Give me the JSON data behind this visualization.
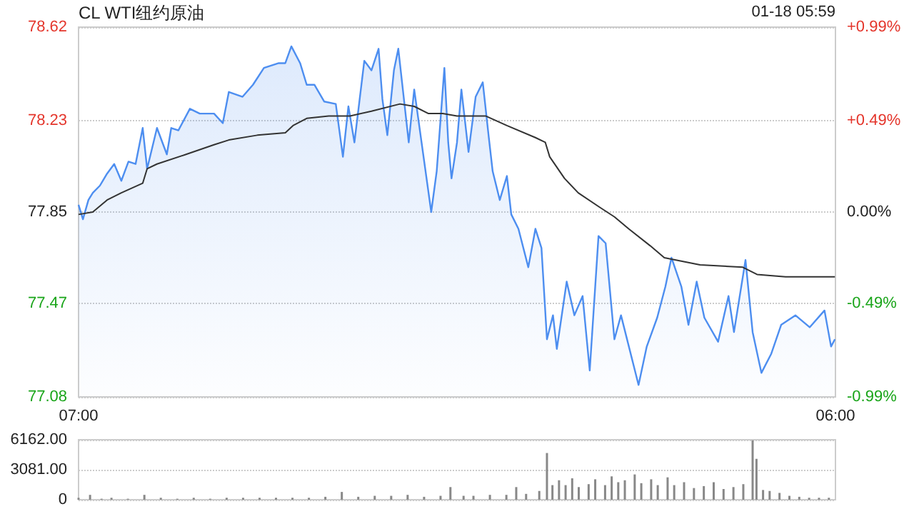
{
  "chart_data": [
    {
      "type": "area",
      "title": "CL WTI纽约原油",
      "annotations": [
        "01-18 05:59"
      ],
      "xlim": [
        "--01-17T07:00",
        "--01-18T06:00"
      ],
      "xticks": [
        {
          "value": "--01-17T07:00",
          "label": "07:00"
        },
        {
          "value": "--01-18T06:00",
          "label": "06:00"
        }
      ],
      "ylim": [
        77.08,
        78.62
      ],
      "yticks": [
        77.08,
        77.47,
        77.85,
        78.23,
        78.62
      ],
      "y2lim": [
        -0.99,
        0.99
      ],
      "y2ticks": [
        {
          "value": -0.99,
          "label": "-0.99%"
        },
        {
          "value": -0.49,
          "label": "-0.49%"
        },
        {
          "value": 0,
          "label": "0.00%"
        },
        {
          "value": 0.49,
          "label": "+0.49%"
        },
        {
          "value": 0.99,
          "label": "+0.99%"
        }
      ],
      "grid": "y",
      "series": [
        {
          "color": "#4d8ef0",
          "x": [
            "--01-17T07:00",
            "--01-17T07:08",
            "--01-17T07:18",
            "--01-17T07:26",
            "--01-17T07:39",
            "--01-17T07:52",
            "--01-17T08:05",
            "--01-17T08:18",
            "--01-17T08:31",
            "--01-17T08:44",
            "--01-17T08:57",
            "--01-17T09:05",
            "--01-17T09:23",
            "--01-17T09:41",
            "--01-17T09:49",
            "--01-17T10:02",
            "--01-17T10:23",
            "--01-17T10:41",
            "--01-17T11:07",
            "--01-17T11:23",
            "--01-17T11:34",
            "--01-17T11:59",
            "--01-17T12:18",
            "--01-17T12:38",
            "--01-17T13:05",
            "--01-17T13:17",
            "--01-17T13:28",
            "--01-17T13:44",
            "--01-17T13:56",
            "--01-17T14:10",
            "--01-17T14:28",
            "--01-17T14:49",
            "--01-17T15:02",
            "--01-17T15:12",
            "--01-17T15:23",
            "--01-17T15:41",
            "--01-17T15:54",
            "--01-17T16:07",
            "--01-17T16:14",
            "--01-17T16:23",
            "--01-17T16:35",
            "--01-17T16:43",
            "--01-17T17:02",
            "--01-17T17:12",
            "--01-17T17:43",
            "--01-17T17:53",
            "--01-17T18:07",
            "--01-17T18:14",
            "--01-17T18:20",
            "--01-17T18:30",
            "--01-17T18:38",
            "--01-17T18:51",
            "--01-17T19:04",
            "--01-17T19:17",
            "--01-17T19:28",
            "--01-17T19:35",
            "--01-17T19:48",
            "--01-17T20:01",
            "--01-17T20:09",
            "--01-17T20:22",
            "--01-17T20:40",
            "--01-17T20:53",
            "--01-17T21:04",
            "--01-17T21:14",
            "--01-17T21:25",
            "--01-17T21:32",
            "--01-17T21:50",
            "--01-17T22:04",
            "--01-17T22:19",
            "--01-17T22:32",
            "--01-17T22:48",
            "--01-17T23:01",
            "--01-17T23:17",
            "--01-17T23:29",
            "--01-18T00:01",
            "--01-18T00:16",
            "--01-18T00:35",
            "--01-18T00:50",
            "--01-18T01:01",
            "--01-18T01:19",
            "--01-18T01:32",
            "--01-18T01:47",
            "--01-18T02:01",
            "--01-18T02:26",
            "--01-18T02:45",
            "--01-18T02:55",
            "--01-18T03:16",
            "--01-18T03:29",
            "--01-18T03:45",
            "--01-18T04:03",
            "--01-18T04:21",
            "--01-18T04:47",
            "--01-18T05:13",
            "--01-18T05:40",
            "--01-18T05:52",
            "--01-18T05:59"
          ],
          "values": [
            77.88,
            77.82,
            77.9,
            77.93,
            77.96,
            78.01,
            78.05,
            77.98,
            78.06,
            78.05,
            78.2,
            78.03,
            78.2,
            78.09,
            78.2,
            78.19,
            78.28,
            78.26,
            78.26,
            78.22,
            78.35,
            78.33,
            78.38,
            78.45,
            78.47,
            78.47,
            78.54,
            78.47,
            78.38,
            78.38,
            78.31,
            78.3,
            78.08,
            78.29,
            78.14,
            78.48,
            78.44,
            78.53,
            78.32,
            78.17,
            78.44,
            78.53,
            78.14,
            78.36,
            77.85,
            78.02,
            78.45,
            78.14,
            77.99,
            78.14,
            78.36,
            78.1,
            78.33,
            78.39,
            78.16,
            78.02,
            77.9,
            78.0,
            77.84,
            77.78,
            77.62,
            77.78,
            77.7,
            77.32,
            77.42,
            77.28,
            77.56,
            77.42,
            77.5,
            77.19,
            77.75,
            77.72,
            77.32,
            77.42,
            77.13,
            77.29,
            77.41,
            77.54,
            77.66,
            77.54,
            77.38,
            77.56,
            77.41,
            77.31,
            77.5,
            77.35,
            77.65,
            77.35,
            77.18,
            77.26,
            77.38,
            77.42,
            77.37,
            77.44,
            77.29,
            77.32
          ]
        },
        {
          "type": "line",
          "color": "#333333",
          "x": [
            "--01-17T07:00",
            "--01-17T07:26",
            "--01-17T07:52",
            "--01-17T08:18",
            "--01-17T08:57",
            "--01-17T09:05",
            "--01-17T09:23",
            "--01-17T10:16",
            "--01-17T11:07",
            "--01-17T11:34",
            "--01-17T12:26",
            "--01-17T13:17",
            "--01-17T13:31",
            "--01-17T13:56",
            "--01-17T14:36",
            "--01-17T15:15",
            "--01-17T15:54",
            "--01-17T16:46",
            "--01-17T17:12",
            "--01-17T17:38",
            "--01-17T18:04",
            "--01-17T18:30",
            "--01-17T19:22",
            "--01-17T20:01",
            "--01-17T20:53",
            "--01-17T21:11",
            "--01-17T21:19",
            "--01-17T21:46",
            "--01-17T22:11",
            "--01-17T22:50",
            "--01-17T23:17",
            "--01-17T23:43",
            "--01-18T00:22",
            "--01-18T00:48",
            "--01-18T01:53",
            "--01-18T03:11",
            "--01-18T03:37",
            "--01-18T04:29",
            "--01-18T05:59"
          ],
          "values": [
            77.84,
            77.85,
            77.9,
            77.93,
            77.97,
            78.03,
            78.05,
            78.09,
            78.13,
            78.15,
            78.17,
            78.18,
            78.21,
            78.24,
            78.25,
            78.25,
            78.27,
            78.3,
            78.29,
            78.26,
            78.26,
            78.25,
            78.25,
            78.21,
            78.16,
            78.14,
            78.08,
            77.99,
            77.93,
            77.87,
            77.83,
            77.78,
            77.71,
            77.66,
            77.63,
            77.62,
            77.59,
            77.58,
            77.58
          ]
        }
      ]
    },
    {
      "type": "bar",
      "xlim": [
        "--01-17T07:00",
        "--01-18T06:00"
      ],
      "ylim": [
        0,
        6162
      ],
      "yticks": [
        0,
        {
          "value": 3081,
          "label": "3081.00"
        },
        {
          "value": 6162,
          "label": "6162.00"
        }
      ],
      "grid": "y",
      "tick_labels": "y",
      "series": [
        {
          "color": "#888888",
          "x": [
            "--01-17T07:00",
            "--01-17T07:21",
            "--01-17T07:42",
            "--01-17T08:00",
            "--01-17T08:30",
            "--01-17T09:00",
            "--01-17T09:30",
            "--01-17T10:00",
            "--01-17T10:30",
            "--01-17T11:00",
            "--01-17T11:30",
            "--01-17T12:00",
            "--01-17T12:30",
            "--01-17T13:00",
            "--01-17T13:30",
            "--01-17T14:00",
            "--01-17T14:30",
            "--01-17T15:00",
            "--01-17T15:30",
            "--01-17T16:00",
            "--01-17T16:30",
            "--01-17T17:00",
            "--01-17T17:30",
            "--01-17T18:00",
            "--01-17T18:18",
            "--01-17T18:42",
            "--01-17T19:00",
            "--01-17T19:30",
            "--01-17T20:00",
            "--01-17T20:18",
            "--01-17T20:36",
            "--01-17T21:00",
            "--01-17T21:14",
            "--01-17T21:24",
            "--01-17T21:36",
            "--01-17T21:48",
            "--01-17T22:00",
            "--01-17T22:12",
            "--01-17T22:30",
            "--01-17T22:42",
            "--01-17T23:00",
            "--01-17T23:12",
            "--01-17T23:24",
            "--01-17T23:36",
            "--01-17T23:54",
            "--01-18T00:06",
            "--01-18T00:24",
            "--01-18T00:36",
            "--01-18T00:54",
            "--01-18T01:06",
            "--01-18T01:24",
            "--01-18T01:42",
            "--01-18T02:00",
            "--01-18T02:18",
            "--01-18T02:36",
            "--01-18T02:54",
            "--01-18T03:12",
            "--01-18T03:29",
            "--01-18T03:36",
            "--01-18T03:48",
            "--01-18T04:00",
            "--01-18T04:18",
            "--01-18T04:36",
            "--01-18T04:54",
            "--01-18T05:12",
            "--01-18T05:30",
            "--01-18T05:48"
          ],
          "values": [
            200,
            500,
            100,
            200,
            100,
            500,
            200,
            100,
            200,
            100,
            200,
            200,
            200,
            200,
            200,
            200,
            300,
            800,
            300,
            400,
            400,
            500,
            300,
            400,
            1300,
            400,
            400,
            500,
            500,
            1300,
            600,
            900,
            4800,
            1500,
            2000,
            1500,
            2200,
            1300,
            1600,
            2100,
            1500,
            2400,
            1800,
            2000,
            2600,
            1700,
            2100,
            1500,
            2300,
            1500,
            1800,
            1200,
            1400,
            1800,
            1100,
            1300,
            1600,
            6100,
            4200,
            1000,
            900,
            700,
            400,
            300,
            200,
            200,
            200
          ]
        }
      ]
    }
  ]
}
